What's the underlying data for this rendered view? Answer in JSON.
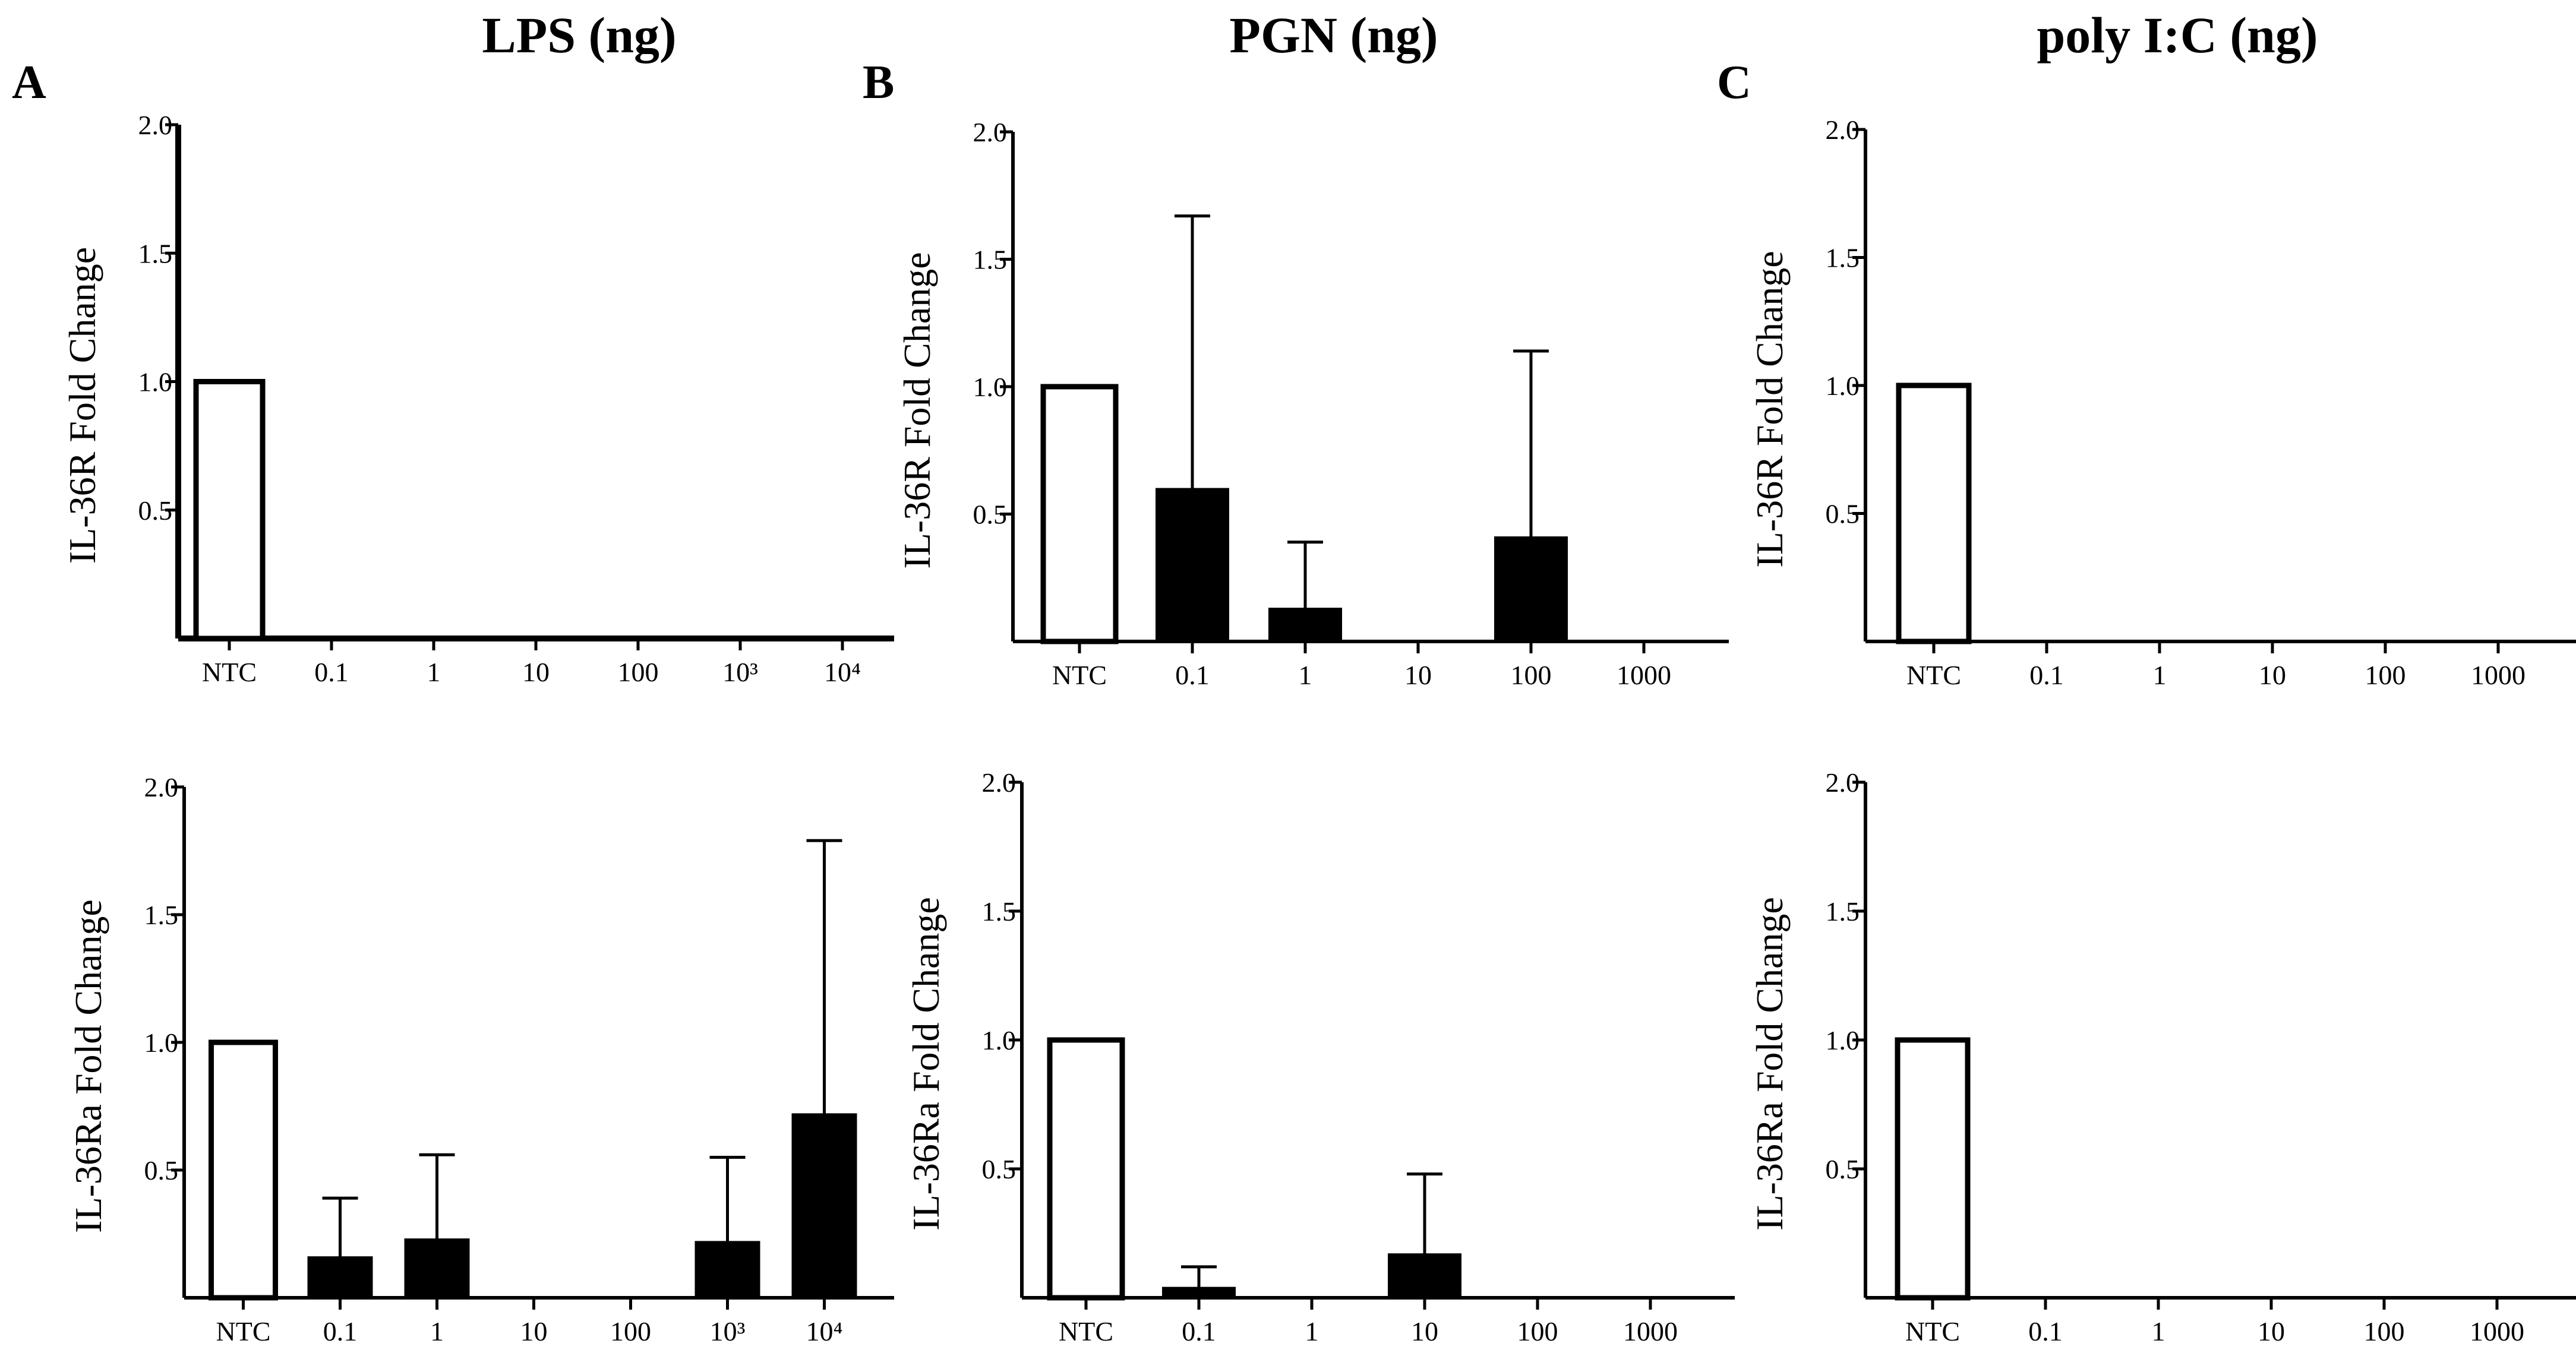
{
  "figure": {
    "columns": [
      {
        "title": "LPS (ng)",
        "letter": "A"
      },
      {
        "title": "PGN (ng)",
        "letter": "B"
      },
      {
        "title": "poly I:C (ng)",
        "letter": "C"
      }
    ]
  },
  "chart_data": [
    {
      "type": "bar",
      "panel": "A",
      "row": "top",
      "title": "LPS (ng)",
      "xlabel": "",
      "ylabel": "IL-36R Fold Change",
      "ylim": [
        0,
        2.0
      ],
      "yticks": [
        "0.5",
        "1.0",
        "1.5",
        "2.0"
      ],
      "categories": [
        "NTC",
        "0.1",
        "1",
        "10",
        "100",
        "10³",
        "10⁴"
      ],
      "values": [
        1.0,
        0,
        0,
        0,
        0,
        0,
        0
      ],
      "errors": [
        0,
        0,
        0,
        0,
        0,
        0,
        0
      ],
      "fills": [
        "white",
        "black",
        "black",
        "black",
        "black",
        "black",
        "black"
      ]
    },
    {
      "type": "bar",
      "panel": "B",
      "row": "top",
      "title": "PGN (ng)",
      "xlabel": "",
      "ylabel": "IL-36R Fold Change",
      "ylim": [
        0,
        2.0
      ],
      "yticks": [
        "0.5",
        "1.0",
        "1.5",
        "2.0"
      ],
      "categories": [
        "NTC",
        "0.1",
        "1",
        "10",
        "100",
        "1000"
      ],
      "values": [
        1.0,
        0.6,
        0.13,
        0,
        0.41,
        0
      ],
      "errors": [
        0,
        1.07,
        0.26,
        0,
        0.73,
        0
      ],
      "fills": [
        "white",
        "black",
        "black",
        "black",
        "black",
        "black"
      ]
    },
    {
      "type": "bar",
      "panel": "C",
      "row": "top",
      "title": "poly I:C (ng)",
      "xlabel": "",
      "ylabel": "IL-36R Fold Change",
      "ylim": [
        0,
        2.0
      ],
      "yticks": [
        "0.5",
        "1.0",
        "1.5",
        "2.0"
      ],
      "categories": [
        "NTC",
        "0.1",
        "1",
        "10",
        "100",
        "1000"
      ],
      "values": [
        1.0,
        0,
        0,
        0,
        0,
        0
      ],
      "errors": [
        0,
        0,
        0,
        0,
        0,
        0
      ],
      "fills": [
        "white",
        "black",
        "black",
        "black",
        "black",
        "black"
      ]
    },
    {
      "type": "bar",
      "panel": "A",
      "row": "bottom",
      "title": "LPS (ng)",
      "xlabel": "",
      "ylabel": "IL-36Ra Fold Change",
      "ylim": [
        0,
        2.0
      ],
      "yticks": [
        "0.5",
        "1.0",
        "1.5",
        "2.0"
      ],
      "categories": [
        "NTC",
        "0.1",
        "1",
        "10",
        "100",
        "10³",
        "10⁴"
      ],
      "values": [
        1.0,
        0.16,
        0.23,
        0,
        0,
        0.22,
        0.72
      ],
      "errors": [
        0,
        0.23,
        0.33,
        0,
        0,
        0.33,
        1.07
      ],
      "fills": [
        "white",
        "black",
        "black",
        "black",
        "black",
        "black",
        "black"
      ]
    },
    {
      "type": "bar",
      "panel": "B",
      "row": "bottom",
      "title": "PGN (ng)",
      "xlabel": "",
      "ylabel": "IL-36Ra Fold Change",
      "ylim": [
        0,
        2.0
      ],
      "yticks": [
        "0.5",
        "1.0",
        "1.5",
        "2.0"
      ],
      "categories": [
        "NTC",
        "0.1",
        "1",
        "10",
        "100",
        "1000"
      ],
      "values": [
        1.0,
        0.04,
        0,
        0.17,
        0,
        0
      ],
      "errors": [
        0,
        0.08,
        0,
        0.31,
        0,
        0
      ],
      "fills": [
        "white",
        "black",
        "black",
        "black",
        "black",
        "black"
      ]
    },
    {
      "type": "bar",
      "panel": "C",
      "row": "bottom",
      "title": "poly I:C (ng)",
      "xlabel": "",
      "ylabel": "IL-36Ra Fold Change",
      "ylim": [
        0,
        2.0
      ],
      "yticks": [
        "0.5",
        "1.0",
        "1.5",
        "2.0"
      ],
      "categories": [
        "NTC",
        "0.1",
        "1",
        "10",
        "100",
        "1000"
      ],
      "values": [
        1.0,
        0,
        0,
        0,
        0,
        0
      ],
      "errors": [
        0,
        0,
        0,
        0,
        0,
        0
      ],
      "fills": [
        "white",
        "black",
        "black",
        "black",
        "black",
        "black"
      ]
    }
  ]
}
